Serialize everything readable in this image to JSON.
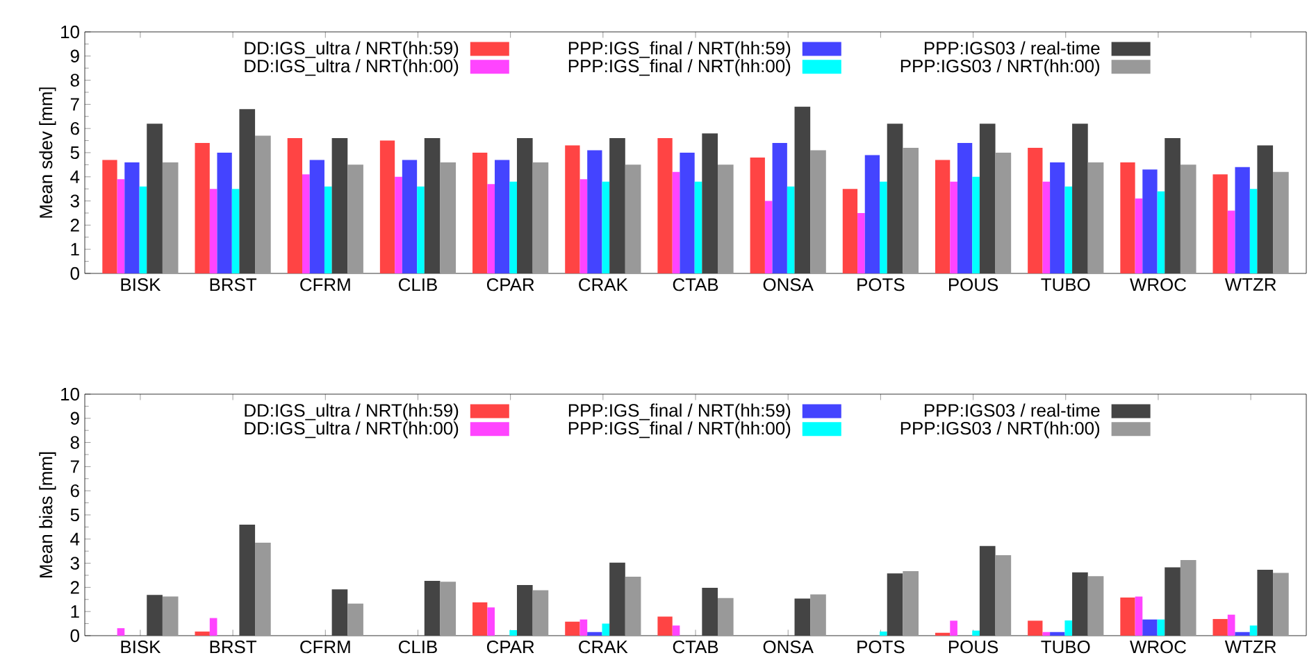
{
  "chart_data": [
    {
      "type": "bar",
      "ylabel": "Mean sdev [mm]",
      "categories": [
        "BISK",
        "BRST",
        "CFRM",
        "CLIB",
        "CPAR",
        "CRAK",
        "CTAB",
        "ONSA",
        "POTS",
        "POUS",
        "TUBO",
        "WROC",
        "WTZR"
      ],
      "ylim": [
        0,
        10
      ],
      "yticks": [
        0,
        1,
        2,
        3,
        4,
        5,
        6,
        7,
        8,
        9,
        10
      ],
      "legend": "top",
      "series": [
        {
          "name": "DD:IGS_ultra / NRT(hh:59)",
          "color": "#ff4444",
          "values": [
            4.7,
            5.4,
            5.6,
            5.5,
            5.0,
            5.3,
            5.6,
            4.8,
            3.5,
            4.7,
            5.2,
            4.6,
            4.1
          ]
        },
        {
          "name": "DD:IGS_ultra / NRT(hh:00)",
          "color": "#ff44ff",
          "values": [
            3.9,
            3.5,
            4.1,
            4.0,
            3.7,
            3.9,
            4.2,
            3.0,
            2.5,
            3.8,
            3.8,
            3.1,
            2.6
          ]
        },
        {
          "name": "PPP:IGS_final / NRT(hh:59)",
          "color": "#4444ff",
          "values": [
            4.6,
            5.0,
            4.7,
            4.7,
            4.7,
            5.1,
            5.0,
            5.4,
            4.9,
            5.4,
            4.6,
            4.3,
            4.4
          ]
        },
        {
          "name": "PPP:IGS_final / NRT(hh:00)",
          "color": "#00ffff",
          "values": [
            3.6,
            3.5,
            3.6,
            3.6,
            3.8,
            3.8,
            3.8,
            3.6,
            3.8,
            4.0,
            3.6,
            3.4,
            3.5
          ]
        },
        {
          "name": "PPP:IGS03 / real-time",
          "color": "#444444",
          "values": [
            6.2,
            6.8,
            5.6,
            5.6,
            5.6,
            5.6,
            5.8,
            6.9,
            6.2,
            6.2,
            6.2,
            5.6,
            5.3
          ]
        },
        {
          "name": "PPP:IGS03 / NRT(hh:00)",
          "color": "#999999",
          "values": [
            4.6,
            5.7,
            4.5,
            4.6,
            4.6,
            4.5,
            4.5,
            5.1,
            5.2,
            5.0,
            4.6,
            4.5,
            4.2
          ]
        }
      ]
    },
    {
      "type": "bar",
      "ylabel": "Mean bias [mm]",
      "categories": [
        "BISK",
        "BRST",
        "CFRM",
        "CLIB",
        "CPAR",
        "CRAK",
        "CTAB",
        "ONSA",
        "POTS",
        "POUS",
        "TUBO",
        "WROC",
        "WTZR"
      ],
      "ylim": [
        0,
        10
      ],
      "yticks": [
        0,
        1,
        2,
        3,
        4,
        5,
        6,
        7,
        8,
        9,
        10
      ],
      "legend": "top",
      "series": [
        {
          "name": "DD:IGS_ultra / NRT(hh:59)",
          "color": "#ff4444",
          "values": [
            0,
            0.17,
            0,
            0,
            1.38,
            0.58,
            0.79,
            0,
            0,
            0.12,
            0.62,
            1.58,
            0.69
          ]
        },
        {
          "name": "DD:IGS_ultra / NRT(hh:00)",
          "color": "#ff44ff",
          "values": [
            0.31,
            0.73,
            0,
            0,
            1.17,
            0.67,
            0.42,
            0,
            0,
            0.62,
            0.15,
            1.62,
            0.87
          ]
        },
        {
          "name": "PPP:IGS_final / NRT(hh:59)",
          "color": "#4444ff",
          "values": [
            0,
            0,
            0,
            0,
            0,
            0.15,
            0,
            0,
            0,
            0,
            0.15,
            0.67,
            0.15
          ]
        },
        {
          "name": "PPP:IGS_final / NRT(hh:00)",
          "color": "#00ffff",
          "values": [
            0,
            0,
            0,
            0,
            0.23,
            0.5,
            0,
            0,
            0.17,
            0.21,
            0.63,
            0.67,
            0.42
          ]
        },
        {
          "name": "PPP:IGS03 / real-time",
          "color": "#444444",
          "values": [
            1.69,
            4.6,
            1.92,
            2.27,
            2.1,
            3.02,
            1.98,
            1.54,
            2.58,
            3.71,
            2.62,
            2.83,
            2.73
          ]
        },
        {
          "name": "PPP:IGS03 / NRT(hh:00)",
          "color": "#999999",
          "values": [
            1.62,
            3.85,
            1.33,
            2.23,
            1.88,
            2.44,
            1.56,
            1.71,
            2.67,
            3.33,
            2.46,
            3.13,
            2.6
          ]
        }
      ]
    }
  ]
}
